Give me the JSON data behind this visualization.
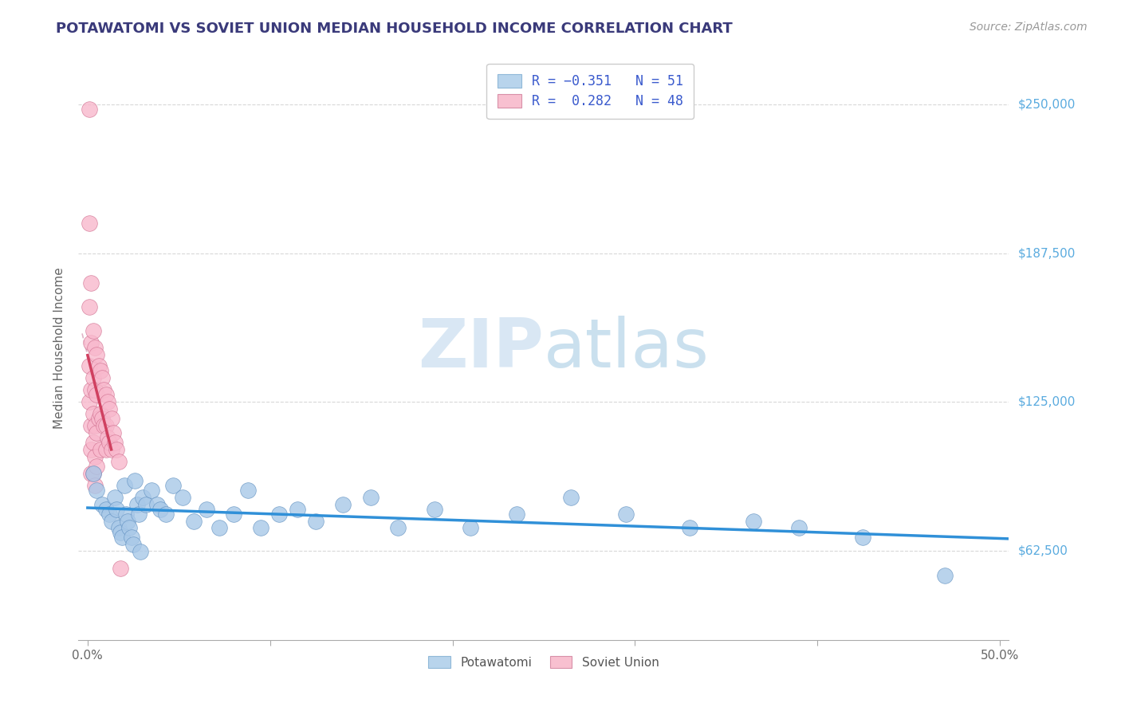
{
  "title": "POTAWATOMI VS SOVIET UNION MEDIAN HOUSEHOLD INCOME CORRELATION CHART",
  "source": "Source: ZipAtlas.com",
  "ylabel": "Median Household Income",
  "y_ticks": [
    62500,
    125000,
    187500,
    250000
  ],
  "y_tick_labels": [
    "$62,500",
    "$125,000",
    "$187,500",
    "$250,000"
  ],
  "x_ticks": [
    0.0,
    0.1,
    0.2,
    0.3,
    0.4,
    0.5
  ],
  "x_tick_labels": [
    "0.0%",
    "",
    "",
    "",
    "",
    "50.0%"
  ],
  "xlim": [
    -0.005,
    0.505
  ],
  "ylim": [
    25000,
    270000
  ],
  "watermark_zip": "ZIP",
  "watermark_atlas": "atlas",
  "blue_color": "#a8c8e8",
  "pink_color": "#f8b8cc",
  "blue_edge": "#6090c0",
  "pink_edge": "#d07090",
  "blue_line_color": "#3090d8",
  "pink_line_color": "#d04060",
  "pink_dashed_color": "#d8a0b8",
  "grid_color": "#d8d8d8",
  "legend_entries": [
    {
      "color": "#b8d4ec"
    },
    {
      "color": "#f8c0d0"
    }
  ],
  "potawatomi_x": [
    0.003,
    0.005,
    0.008,
    0.01,
    0.012,
    0.013,
    0.015,
    0.016,
    0.017,
    0.018,
    0.019,
    0.02,
    0.021,
    0.022,
    0.023,
    0.024,
    0.025,
    0.026,
    0.027,
    0.028,
    0.029,
    0.03,
    0.032,
    0.035,
    0.038,
    0.04,
    0.043,
    0.047,
    0.052,
    0.058,
    0.065,
    0.072,
    0.08,
    0.088,
    0.095,
    0.105,
    0.115,
    0.125,
    0.14,
    0.155,
    0.17,
    0.19,
    0.21,
    0.235,
    0.265,
    0.295,
    0.33,
    0.365,
    0.39,
    0.425,
    0.47
  ],
  "potawatomi_y": [
    95000,
    88000,
    82000,
    80000,
    78000,
    75000,
    85000,
    80000,
    72000,
    70000,
    68000,
    90000,
    78000,
    75000,
    72000,
    68000,
    65000,
    92000,
    82000,
    78000,
    62000,
    85000,
    82000,
    88000,
    82000,
    80000,
    78000,
    90000,
    85000,
    75000,
    80000,
    72000,
    78000,
    88000,
    72000,
    78000,
    80000,
    75000,
    82000,
    85000,
    72000,
    80000,
    72000,
    78000,
    85000,
    78000,
    72000,
    75000,
    72000,
    68000,
    52000
  ],
  "soviet_x": [
    0.001,
    0.001,
    0.001,
    0.001,
    0.001,
    0.002,
    0.002,
    0.002,
    0.002,
    0.002,
    0.002,
    0.003,
    0.003,
    0.003,
    0.003,
    0.003,
    0.004,
    0.004,
    0.004,
    0.004,
    0.004,
    0.005,
    0.005,
    0.005,
    0.005,
    0.006,
    0.006,
    0.007,
    0.007,
    0.007,
    0.008,
    0.008,
    0.009,
    0.009,
    0.01,
    0.01,
    0.01,
    0.011,
    0.011,
    0.012,
    0.012,
    0.013,
    0.013,
    0.014,
    0.015,
    0.016,
    0.017,
    0.018
  ],
  "soviet_y": [
    248000,
    200000,
    165000,
    140000,
    125000,
    175000,
    150000,
    130000,
    115000,
    105000,
    95000,
    155000,
    135000,
    120000,
    108000,
    95000,
    148000,
    130000,
    115000,
    102000,
    90000,
    145000,
    128000,
    112000,
    98000,
    140000,
    118000,
    138000,
    120000,
    105000,
    135000,
    118000,
    130000,
    115000,
    128000,
    115000,
    105000,
    125000,
    110000,
    122000,
    108000,
    118000,
    105000,
    112000,
    108000,
    105000,
    100000,
    55000
  ]
}
